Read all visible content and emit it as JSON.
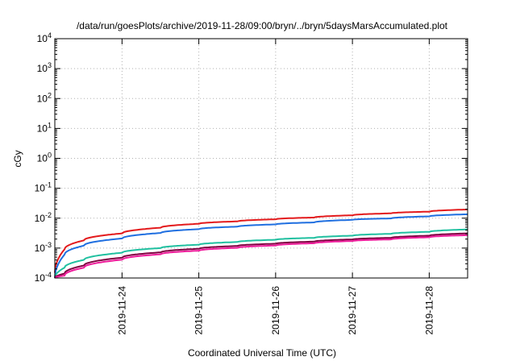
{
  "chart_data": {
    "type": "line",
    "title": "/data/run/goesPlots/archive/2019-11-28/09:00/bryn/../bryn/5daysMarsAccumulated.plot",
    "xlabel": "Coordinated Universal Time (UTC)",
    "ylabel": "cGy",
    "yscale": "log",
    "ylim": [
      0.0001,
      10000
    ],
    "xlim": [
      "2019-11-23 03:00",
      "2019-11-28 12:00"
    ],
    "x_ticks": [
      "2019-11-24",
      "2019-11-25",
      "2019-11-26",
      "2019-11-27",
      "2019-11-28"
    ],
    "y_ticks": [
      {
        "value": 0.0001,
        "base": "10",
        "exp": "-4"
      },
      {
        "value": 0.001,
        "base": "10",
        "exp": "-3"
      },
      {
        "value": 0.01,
        "base": "10",
        "exp": "-2"
      },
      {
        "value": 0.1,
        "base": "10",
        "exp": "-1"
      },
      {
        "value": 1,
        "base": "10",
        "exp": "0"
      },
      {
        "value": 10,
        "base": "10",
        "exp": "1"
      },
      {
        "value": 100,
        "base": "10",
        "exp": "2"
      },
      {
        "value": 1000,
        "base": "10",
        "exp": "3"
      },
      {
        "value": 10000,
        "base": "10",
        "exp": "4"
      }
    ],
    "grid": true,
    "x": [
      "2019-11-23 03:00",
      "2019-11-23 06:00",
      "2019-11-23 12:00",
      "2019-11-24 00:00",
      "2019-11-24 12:00",
      "2019-11-25 00:00",
      "2019-11-25 12:00",
      "2019-11-26 00:00",
      "2019-11-26 12:00",
      "2019-11-27 00:00",
      "2019-11-27 12:00",
      "2019-11-28 00:00",
      "2019-11-28 12:00"
    ],
    "series": [
      {
        "color": "#e31a1c",
        "values": [
          0.00015,
          0.0009,
          0.0018,
          0.0031,
          0.0048,
          0.0065,
          0.0078,
          0.0092,
          0.0105,
          0.0125,
          0.0145,
          0.0165,
          0.0195
        ]
      },
      {
        "color": "#1f6fe0",
        "values": [
          0.0001,
          0.0006,
          0.0012,
          0.0021,
          0.0032,
          0.0043,
          0.0052,
          0.0062,
          0.0072,
          0.0088,
          0.0098,
          0.0115,
          0.0135
        ]
      },
      {
        "color": "#20c0a0",
        "values": [
          0.0001,
          0.00022,
          0.0004,
          0.0007,
          0.001,
          0.0013,
          0.0016,
          0.0019,
          0.0022,
          0.0026,
          0.003,
          0.0035,
          0.0042
        ]
      },
      {
        "color": "#800040",
        "values": [
          0.0001,
          0.00014,
          0.00026,
          0.00048,
          0.00072,
          0.00095,
          0.00118,
          0.0014,
          0.00165,
          0.00195,
          0.0022,
          0.0026,
          0.0031
        ]
      },
      {
        "color": "#ee1a9a",
        "values": [
          0.0001,
          0.00012,
          0.00022,
          0.00041,
          0.00062,
          0.00082,
          0.00102,
          0.00122,
          0.00145,
          0.00172,
          0.00195,
          0.0023,
          0.0027
        ]
      }
    ]
  }
}
